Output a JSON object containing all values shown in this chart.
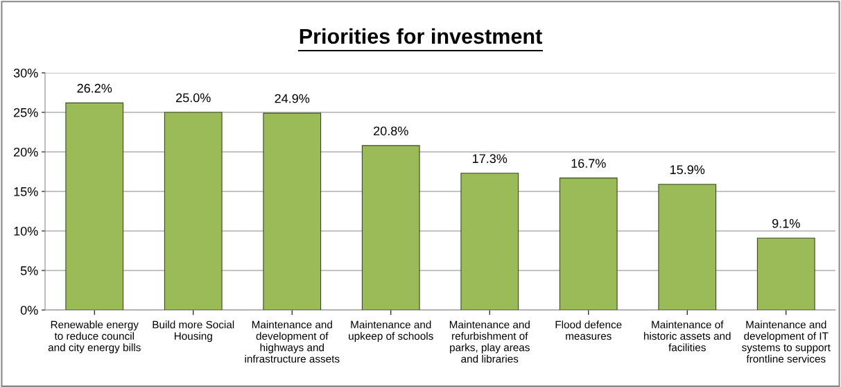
{
  "chart_data": {
    "type": "bar",
    "title": "Priorities for investment",
    "categories": [
      "Renewable energy\nto reduce council\nand city energy bills",
      "Build more Social\nHousing",
      "Maintenance and\ndevelopment of\nhighways and\ninfrastructure assets",
      "Maintenance and\nupkeep of schools",
      "Maintenance and\nrefurbishment of\nparks, play areas\nand libraries",
      "Flood defence\nmeasures",
      "Maintenance of\nhistoric assets and\nfacilities",
      "Maintenance and\ndevelopment of IT\nsystems to support\nfrontline services"
    ],
    "values": [
      26.2,
      25.0,
      24.9,
      20.8,
      17.3,
      16.7,
      15.9,
      9.1
    ],
    "value_labels": [
      "26.2%",
      "25.0%",
      "24.9%",
      "20.8%",
      "17.3%",
      "16.7%",
      "15.9%",
      "9.1%"
    ],
    "color": "#9bbb59",
    "ylim": [
      0,
      30
    ],
    "yticks": [
      {
        "value": 0,
        "label": "0%"
      },
      {
        "value": 5,
        "label": "5%"
      },
      {
        "value": 10,
        "label": "10%"
      },
      {
        "value": 15,
        "label": "15%"
      },
      {
        "value": 20,
        "label": "20%"
      },
      {
        "value": 25,
        "label": "25%"
      },
      {
        "value": 30,
        "label": "30%"
      }
    ],
    "grid": "y",
    "legend": false
  }
}
